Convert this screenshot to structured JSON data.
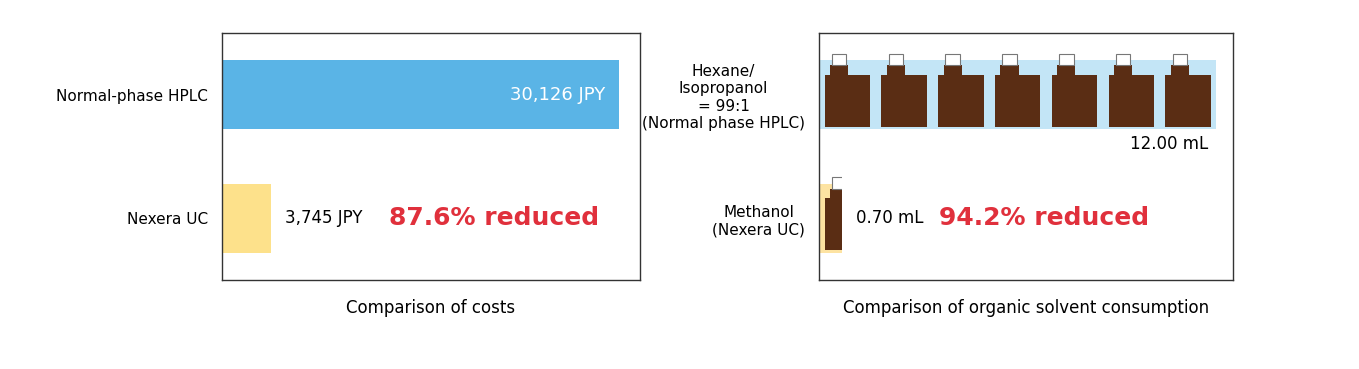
{
  "chart_data": [
    {
      "type": "bar",
      "orientation": "horizontal",
      "categories": [
        "Normal-phase HPLC",
        "Nexera UC"
      ],
      "values": [
        30126,
        3745
      ],
      "value_labels": [
        "30,126 JPY",
        "3,745 JPY"
      ],
      "data_labels": true,
      "colors": [
        "#5ab4e6",
        "#fde18b"
      ],
      "xlim": [
        0,
        31700
      ],
      "tick_labels": "y",
      "xlabel": "Comparison of costs",
      "annotations": [
        "87.6% reduced"
      ]
    },
    {
      "type": "bar",
      "orientation": "horizontal",
      "categories": [
        "Hexane/\nIsopropanol\n= 99:1\n(Normal phase HPLC)",
        "Methanol\n(Nexera UC)"
      ],
      "values": [
        12.0,
        0.7
      ],
      "value_labels": [
        "12.00 mL",
        "0.70 mL"
      ],
      "data_labels": true,
      "colors": [
        "#c3e5f6",
        "#fde3a2"
      ],
      "xlim": [
        0,
        12.5
      ],
      "tick_labels": "y",
      "xlabel": "Comparison of organic solvent consumption",
      "annotations": [
        "94.2% reduced"
      ]
    }
  ]
}
